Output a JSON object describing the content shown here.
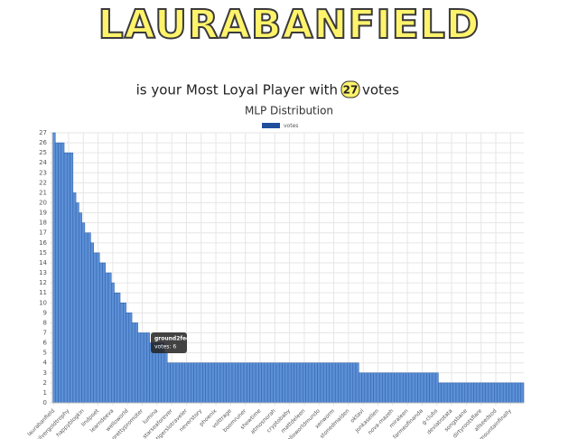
{
  "header": {
    "logo": "LAURABANFIELD",
    "subtitle_before": "is your Most Loyal Player with",
    "badge": "27",
    "subtitle_after": "votes"
  },
  "tooltip": {
    "title": "ground2feet",
    "body": "votes: 6"
  },
  "chart_data": {
    "type": "bar",
    "title": "MLP Distribution",
    "series": [
      {
        "name": "votes",
        "color": "#5b8fd6",
        "values": [
          27,
          26,
          26,
          26,
          25,
          25,
          25,
          21,
          20,
          19,
          18,
          17,
          17,
          16,
          15,
          15,
          14,
          14,
          13,
          13,
          12,
          11,
          11,
          10,
          10,
          9,
          9,
          8,
          8,
          7,
          7,
          7,
          7,
          6,
          6,
          6,
          6,
          6,
          5,
          4,
          4,
          4,
          4,
          4,
          4,
          4,
          4,
          4,
          4,
          4,
          4,
          4,
          4,
          4,
          4,
          4,
          4,
          4,
          4,
          4,
          4,
          4,
          4,
          4,
          4,
          4,
          4,
          4,
          4,
          4,
          4,
          4,
          4,
          4,
          4,
          4,
          4,
          4,
          4,
          4,
          4,
          4,
          4,
          4,
          4,
          4,
          4,
          4,
          4,
          4,
          4,
          4,
          4,
          4,
          4,
          4,
          4,
          4,
          4,
          4,
          4,
          4,
          4,
          4,
          3,
          3,
          3,
          3,
          3,
          3,
          3,
          3,
          3,
          3,
          3,
          3,
          3,
          3,
          3,
          3,
          3,
          3,
          3,
          3,
          3,
          3,
          3,
          3,
          3,
          3,
          3,
          2,
          2,
          2,
          2,
          2,
          2,
          2,
          2,
          2,
          2,
          2,
          2,
          2,
          2,
          2,
          2,
          2,
          2,
          2,
          2,
          2,
          2,
          2,
          2,
          2,
          2,
          2,
          2,
          2
        ]
      }
    ],
    "categories": [
      "laurabanfield",
      null,
      null,
      null,
      null,
      "silvergoldtrophy",
      null,
      null,
      null,
      null,
      "happyblogkin",
      null,
      null,
      null,
      null,
      "lindpoet",
      null,
      null,
      null,
      null,
      "learndeeva",
      null,
      null,
      null,
      null,
      "welloworld",
      null,
      null,
      null,
      null,
      "prettypromoter",
      null,
      null,
      null,
      null,
      "lumina",
      null,
      null,
      null,
      null,
      "starseaforever",
      null,
      null,
      null,
      null,
      "tigerslotraveler",
      null,
      null,
      null,
      null,
      "neverstory",
      null,
      null,
      null,
      null,
      "phoenix",
      null,
      null,
      null,
      null,
      "volttrage",
      null,
      null,
      null,
      null,
      "boomruner",
      null,
      null,
      null,
      null,
      "showtime",
      null,
      null,
      null,
      null,
      "atmosnorah",
      null,
      null,
      null,
      null,
      "cryptobaby",
      null,
      null,
      null,
      null,
      "mattdeleen",
      null,
      null,
      null,
      null,
      "helloworldmundo",
      null,
      null,
      null,
      null,
      "xenworm",
      null,
      null,
      null,
      null,
      "stonedmaiden",
      null,
      null,
      null,
      null,
      "oktavi",
      null,
      null,
      null,
      null,
      "jonkasellen",
      null,
      null,
      null,
      null,
      "nova-mazeh",
      null,
      null,
      null,
      null,
      "miraleen",
      null,
      null,
      null,
      null,
      "farmeofinanda",
      null,
      null,
      null,
      null,
      "g-clubs",
      null,
      null,
      null,
      null,
      "deviatrotata",
      null,
      null,
      null,
      null,
      "songsbane",
      null,
      null,
      null,
      null,
      "dirtyrootsflare",
      null,
      null,
      null,
      null,
      "allseedsod",
      null,
      null,
      null,
      null,
      "mountainfinally",
      null,
      null,
      null,
      null
    ],
    "ylim": [
      0,
      27
    ],
    "yticks": [
      0,
      1,
      2,
      3,
      4,
      5,
      6,
      7,
      8,
      9,
      10,
      11,
      12,
      13,
      14,
      15,
      16,
      17,
      18,
      19,
      20,
      21,
      22,
      23,
      24,
      25,
      26,
      27
    ],
    "grid": true,
    "legend": "top",
    "legend_color": "#1f4e9c",
    "stroke": "#2e5fa8"
  }
}
